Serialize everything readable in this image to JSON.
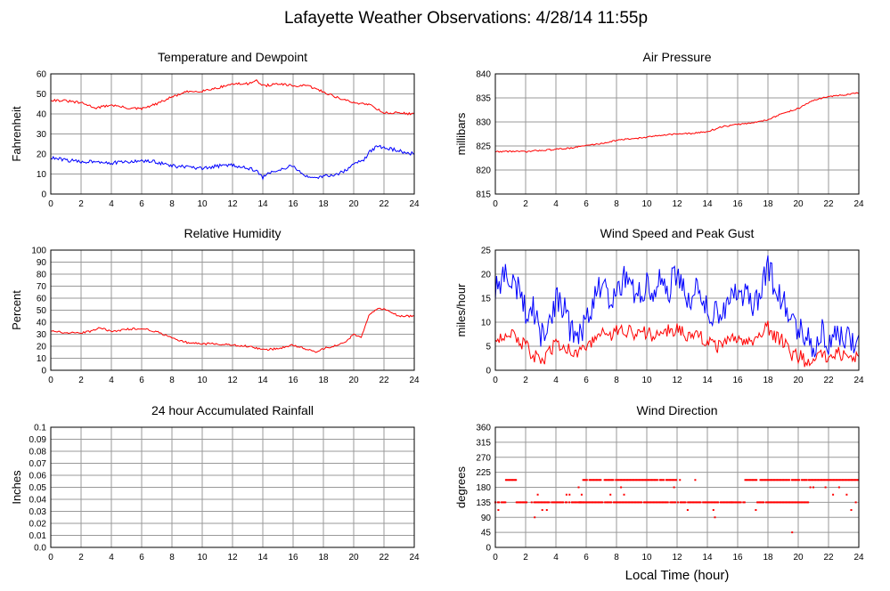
{
  "page_title": "Lafayette Weather Observations: 4/28/14 11:55p",
  "xlabel_global": "Local Time (hour)",
  "colors": {
    "red": "#ff0000",
    "blue": "#0000ff",
    "grid": "#999999",
    "frame": "#000000"
  },
  "chart_data": [
    {
      "id": "temp",
      "type": "line",
      "title": "Temperature and Dewpoint",
      "ylabel": "Fahrenheit",
      "xlabel": "",
      "xlim": [
        0,
        24
      ],
      "ylim": [
        0,
        60
      ],
      "xticks": [
        "0",
        "2",
        "4",
        "6",
        "8",
        "10",
        "12",
        "14",
        "16",
        "18",
        "20",
        "22",
        "24"
      ],
      "yticks": [
        "0",
        "10",
        "20",
        "30",
        "40",
        "50",
        "60"
      ],
      "grid": true,
      "series": [
        {
          "color": "#ff0000",
          "noise": 0.6,
          "x": [
            0,
            1,
            2,
            3,
            4,
            5,
            6,
            7,
            8,
            9,
            10,
            11,
            12,
            13,
            13.5,
            14,
            15,
            16,
            17,
            18,
            19,
            20,
            21,
            22,
            23,
            24
          ],
          "y": [
            47,
            46.5,
            45.5,
            43,
            44.5,
            43,
            42.5,
            45,
            48.5,
            51,
            51.5,
            53,
            55,
            55,
            57,
            54,
            55,
            54,
            54,
            51,
            48,
            45.5,
            45,
            40.5,
            40.5,
            40
          ]
        },
        {
          "color": "#0000ff",
          "noise": 0.9,
          "x": [
            0,
            1,
            2,
            3,
            4,
            5,
            6,
            7,
            8,
            9,
            10,
            11,
            12,
            13,
            13.7,
            14,
            14.5,
            15,
            16,
            16.5,
            17,
            17.5,
            18,
            19,
            19.5,
            20,
            20.7,
            21,
            21.5,
            22,
            23,
            24
          ],
          "y": [
            18,
            17,
            16,
            16.5,
            15.5,
            16,
            16.5,
            16,
            14,
            13.5,
            12.5,
            14,
            14.5,
            13,
            11,
            8,
            11,
            12,
            14,
            11,
            8,
            7.5,
            9,
            10,
            12,
            15,
            17,
            21,
            23.5,
            23.5,
            21.5,
            20
          ]
        }
      ]
    },
    {
      "id": "pressure",
      "type": "line",
      "title": "Air Pressure",
      "ylabel": "millibars",
      "xlabel": "",
      "xlim": [
        0,
        24
      ],
      "ylim": [
        815,
        840
      ],
      "xticks": [
        "0",
        "2",
        "4",
        "6",
        "8",
        "10",
        "12",
        "14",
        "16",
        "18",
        "20",
        "22",
        "24"
      ],
      "yticks": [
        "815",
        "820",
        "825",
        "830",
        "835",
        "840"
      ],
      "grid": true,
      "series": [
        {
          "color": "#ff0000",
          "noise": 0.15,
          "x": [
            0,
            1,
            2,
            3,
            4,
            5,
            6,
            7,
            8,
            9,
            10,
            11,
            12,
            13,
            14,
            15,
            16,
            17,
            18,
            19,
            20,
            21,
            22,
            23,
            24
          ],
          "y": [
            823.8,
            823.9,
            823.8,
            824.1,
            824.3,
            824.6,
            825.1,
            825.5,
            826.2,
            826.5,
            826.8,
            827.3,
            827.5,
            827.6,
            828.0,
            829.0,
            829.5,
            829.8,
            830.5,
            831.8,
            832.8,
            834.5,
            835.3,
            835.6,
            836.0
          ]
        }
      ]
    },
    {
      "id": "humidity",
      "type": "line",
      "title": "Relative Humidity",
      "ylabel": "Percent",
      "xlabel": "",
      "xlim": [
        0,
        24
      ],
      "ylim": [
        0,
        100
      ],
      "xticks": [
        "0",
        "2",
        "4",
        "6",
        "8",
        "10",
        "12",
        "14",
        "16",
        "18",
        "20",
        "22",
        "24"
      ],
      "yticks": [
        "0",
        "10",
        "20",
        "30",
        "40",
        "50",
        "60",
        "70",
        "80",
        "90",
        "100"
      ],
      "grid": true,
      "series": [
        {
          "color": "#ff0000",
          "noise": 0.8,
          "x": [
            0,
            1,
            2,
            2.8,
            3.2,
            4,
            5,
            6,
            7,
            8,
            9,
            10,
            11,
            12,
            13,
            14,
            15,
            16,
            17,
            17.5,
            18,
            19,
            19.5,
            20,
            20.5,
            21,
            21.5,
            22,
            23,
            24
          ],
          "y": [
            33,
            31,
            31,
            33,
            36,
            32,
            34,
            35,
            32,
            27,
            23,
            22,
            22,
            21,
            20,
            17,
            18,
            21,
            17,
            15,
            18,
            21,
            24,
            30,
            28,
            45,
            51,
            51,
            45,
            45
          ]
        }
      ]
    },
    {
      "id": "wind",
      "type": "line",
      "title": "Wind Speed and Peak Gust",
      "ylabel": "miles/hour",
      "xlabel": "",
      "xlim": [
        0,
        24
      ],
      "ylim": [
        0,
        25
      ],
      "xticks": [
        "0",
        "2",
        "4",
        "6",
        "8",
        "10",
        "12",
        "14",
        "16",
        "18",
        "20",
        "22",
        "24"
      ],
      "yticks": [
        "0",
        "5",
        "10",
        "15",
        "20",
        "25"
      ],
      "grid": true,
      "series": [
        {
          "color": "#0000ff",
          "noise": 3.0,
          "x": [
            0,
            0.5,
            1,
            1.5,
            2,
            2.5,
            3,
            3.5,
            4,
            4.5,
            5,
            5.5,
            6,
            6.5,
            7,
            7.5,
            8,
            8.5,
            9,
            9.5,
            10,
            10.5,
            11,
            11.5,
            12,
            12.5,
            13,
            13.5,
            14,
            14.5,
            15,
            15.5,
            16,
            16.5,
            17,
            17.5,
            18,
            18.5,
            19,
            19.5,
            20,
            20.5,
            21,
            21.5,
            22,
            22.5,
            23,
            23.5,
            24
          ],
          "y": [
            16,
            20,
            18,
            17,
            12,
            13,
            7,
            9,
            15,
            13,
            8,
            8,
            10,
            14,
            18,
            15,
            17,
            19,
            17,
            16,
            18,
            15,
            20,
            17,
            21,
            16,
            15,
            18,
            13,
            12,
            12,
            15,
            17,
            16,
            13,
            16,
            22,
            17,
            15,
            9,
            9,
            8,
            4,
            8,
            6,
            9,
            7,
            6,
            5
          ]
        },
        {
          "color": "#ff0000",
          "noise": 1.5,
          "x": [
            0,
            0.5,
            1,
            1.5,
            2,
            2.5,
            3,
            3.5,
            4,
            4.5,
            5,
            5.5,
            6,
            6.5,
            7,
            7.5,
            8,
            8.5,
            9,
            9.5,
            10,
            10.5,
            11,
            11.5,
            12,
            12.5,
            13,
            13.5,
            14,
            14.5,
            15,
            15.5,
            16,
            16.5,
            17,
            17.5,
            18,
            18.5,
            19,
            19.5,
            20,
            20.5,
            21,
            21.5,
            22,
            22.5,
            23,
            23.5,
            24
          ],
          "y": [
            7,
            7,
            8,
            6,
            5,
            3,
            2,
            3,
            6,
            5,
            4,
            4,
            5,
            6,
            8,
            7,
            8,
            8,
            8,
            7,
            8,
            7,
            9,
            8,
            9,
            7,
            7,
            7,
            6,
            5,
            5,
            6,
            7,
            6,
            6,
            7,
            9,
            7,
            6,
            3,
            3,
            2,
            2,
            3,
            3,
            4,
            3,
            2,
            3
          ]
        }
      ]
    },
    {
      "id": "rain",
      "type": "line",
      "title": "24 hour Accumulated Rainfall",
      "ylabel": "Inches",
      "xlabel": "",
      "xlim": [
        0,
        24
      ],
      "ylim": [
        0,
        0.1
      ],
      "xticks": [
        "0",
        "2",
        "4",
        "6",
        "8",
        "10",
        "12",
        "14",
        "16",
        "18",
        "20",
        "22",
        "24"
      ],
      "yticks": [
        "0.0",
        "0.01",
        "0.02",
        "0.03",
        "0.04",
        "0.05",
        "0.06",
        "0.07",
        "0.08",
        "0.09",
        "0.1"
      ],
      "grid": true,
      "series": [
        {
          "color": "#ff0000",
          "noise": 0,
          "x": [
            0,
            24
          ],
          "y": [
            0,
            0
          ]
        }
      ]
    },
    {
      "id": "direction",
      "type": "scatter",
      "title": "Wind Direction",
      "ylabel": "degrees",
      "xlabel": "Local Time (hour)",
      "xlim": [
        0,
        24
      ],
      "ylim": [
        0,
        360
      ],
      "xticks": [
        "0",
        "2",
        "4",
        "6",
        "8",
        "10",
        "12",
        "14",
        "16",
        "18",
        "20",
        "22",
        "24"
      ],
      "yticks": [
        "0",
        "45",
        "90",
        "135",
        "180",
        "225",
        "270",
        "315",
        "360"
      ],
      "grid": true,
      "series": [
        {
          "color": "#ff0000",
          "segments": [
            {
              "x0": 0.0,
              "x1": 0.7,
              "y": 135
            },
            {
              "x0": 0.7,
              "x1": 1.4,
              "y": 202
            },
            {
              "x0": 1.4,
              "x1": 5.8,
              "y": 135
            },
            {
              "x0": 5.8,
              "x1": 12.2,
              "y": 202
            },
            {
              "x0": 5.5,
              "x1": 14.3,
              "y": 135
            },
            {
              "x0": 14.3,
              "x1": 16.5,
              "y": 135
            },
            {
              "x0": 16.5,
              "x1": 17.3,
              "y": 202
            },
            {
              "x0": 17.3,
              "x1": 18.0,
              "y": 135
            },
            {
              "x0": 17.5,
              "x1": 20.6,
              "y": 202
            },
            {
              "x0": 18.0,
              "x1": 20.7,
              "y": 135
            },
            {
              "x0": 20.7,
              "x1": 24.0,
              "y": 202
            }
          ],
          "points": [
            [
              0.2,
              112
            ],
            [
              2.6,
              90
            ],
            [
              2.8,
              158
            ],
            [
              3.1,
              112
            ],
            [
              3.4,
              112
            ],
            [
              4.7,
              158
            ],
            [
              4.9,
              158
            ],
            [
              5.5,
              180
            ],
            [
              5.7,
              158
            ],
            [
              7.6,
              158
            ],
            [
              8.3,
              180
            ],
            [
              8.5,
              158
            ],
            [
              11.8,
              180
            ],
            [
              12.7,
              112
            ],
            [
              13.2,
              202
            ],
            [
              14.4,
              112
            ],
            [
              14.5,
              90
            ],
            [
              15.6,
              135
            ],
            [
              17.2,
              112
            ],
            [
              19.6,
              45
            ],
            [
              20.8,
              180
            ],
            [
              21.0,
              180
            ],
            [
              21.8,
              180
            ],
            [
              22.3,
              158
            ],
            [
              22.7,
              180
            ],
            [
              23.2,
              158
            ],
            [
              23.5,
              112
            ],
            [
              23.8,
              135
            ]
          ]
        }
      ]
    }
  ]
}
